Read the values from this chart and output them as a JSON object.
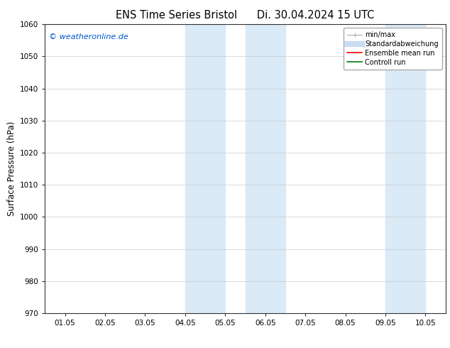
{
  "title_left": "ENS Time Series Bristol",
  "title_right": "Di. 30.04.2024 15 UTC",
  "ylabel": "Surface Pressure (hPa)",
  "ylim": [
    970,
    1060
  ],
  "yticks": [
    970,
    980,
    990,
    1000,
    1010,
    1020,
    1030,
    1040,
    1050,
    1060
  ],
  "xtick_labels": [
    "01.05",
    "02.05",
    "03.05",
    "04.05",
    "05.05",
    "06.05",
    "07.05",
    "08.05",
    "09.05",
    "10.05"
  ],
  "shaded_regions": [
    {
      "xstart": 3.0,
      "xend": 4.0
    },
    {
      "xstart": 4.5,
      "xend": 5.5
    },
    {
      "xstart": 8.0,
      "xend": 9.0
    },
    {
      "xstart": 9.5,
      "xend": 10.5
    }
  ],
  "shaded_color": "#daeaf7",
  "watermark_text": "© weatheronline.de",
  "watermark_color": "#0055cc",
  "background_color": "#ffffff",
  "grid_color": "#cccccc",
  "tick_label_fontsize": 7.5,
  "axis_label_fontsize": 8.5,
  "title_fontsize": 10.5
}
